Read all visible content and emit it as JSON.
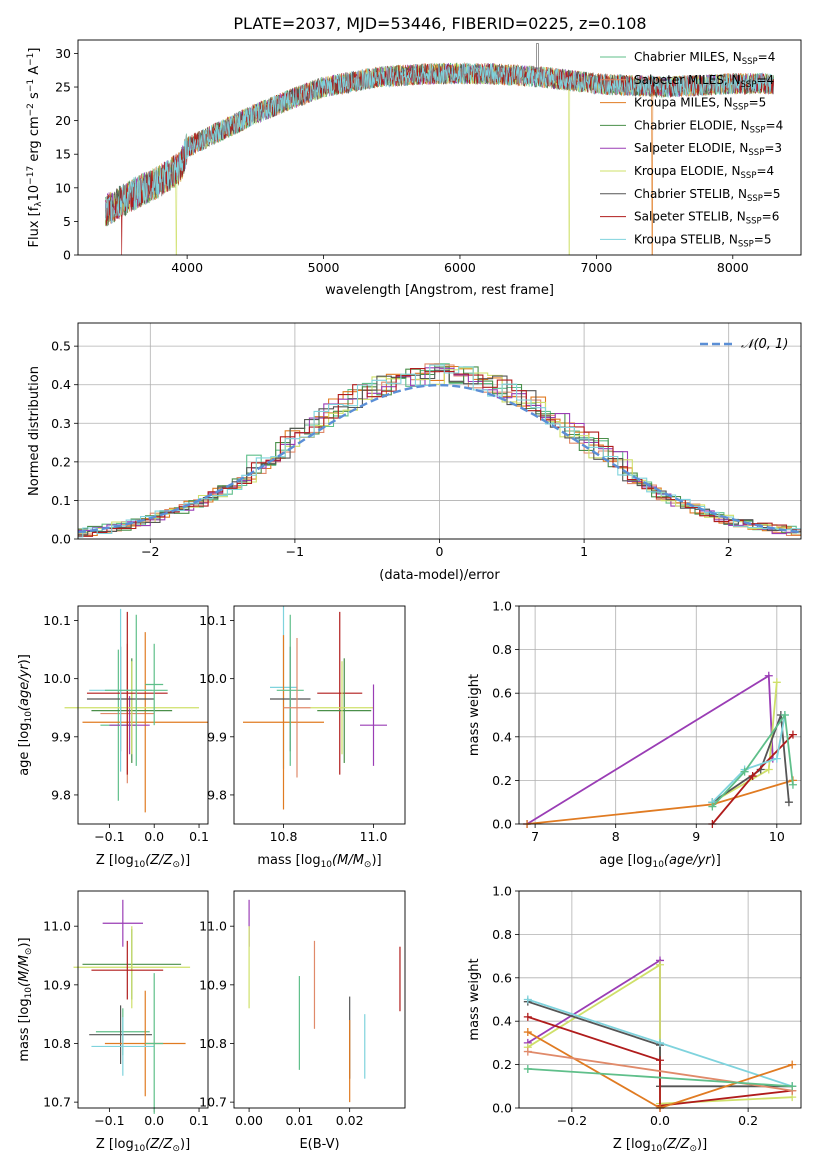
{
  "figure": {
    "title": "PLATE=2037, MJD=53446, FIBERID=0225, z=0.108"
  },
  "models": [
    {
      "name": "Chabrier MILES",
      "nssp": "4",
      "color": "#5fbf8a"
    },
    {
      "name": "Salpeter MILES",
      "nssp": "4",
      "color": "#e08a6a"
    },
    {
      "name": "Kroupa MILES",
      "nssp": "5",
      "color": "#e07b22"
    },
    {
      "name": "Chabrier ELODIE",
      "nssp": "4",
      "color": "#4a8f4a"
    },
    {
      "name": "Salpeter ELODIE",
      "nssp": "3",
      "color": "#9a3db5"
    },
    {
      "name": "Kroupa ELODIE",
      "nssp": "4",
      "color": "#cfe06a"
    },
    {
      "name": "Chabrier STELIB",
      "nssp": "5",
      "color": "#555555"
    },
    {
      "name": "Salpeter STELIB",
      "nssp": "6",
      "color": "#b01c1c"
    },
    {
      "name": "Kroupa STELIB",
      "nssp": "5",
      "color": "#7fd3dd"
    }
  ],
  "chart_data": [
    {
      "id": "spectrum",
      "type": "line",
      "xlabel": "wavelength [Angstrom, rest frame]",
      "ylabel_parts": [
        "Flux [f",
        "λ",
        "10",
        "−17",
        " erg cm",
        "−2",
        " s",
        "−1",
        " A",
        "−1",
        "]"
      ],
      "xlim": [
        3200,
        8500
      ],
      "ylim": [
        0,
        32
      ],
      "xticks": [
        4000,
        5000,
        6000,
        7000,
        8000
      ],
      "yticks": [
        0,
        5,
        10,
        15,
        20,
        25,
        30
      ],
      "continuum": [
        [
          3400,
          6.5
        ],
        [
          3600,
          9
        ],
        [
          3800,
          11
        ],
        [
          3950,
          13
        ],
        [
          4000,
          16
        ],
        [
          4300,
          19
        ],
        [
          4500,
          21
        ],
        [
          4800,
          23.5
        ],
        [
          5000,
          25
        ],
        [
          5400,
          26.5
        ],
        [
          5800,
          27
        ],
        [
          6200,
          27
        ],
        [
          6600,
          26.5
        ],
        [
          7000,
          25.5
        ],
        [
          7500,
          25
        ],
        [
          8000,
          25.5
        ],
        [
          8300,
          25.5
        ]
      ],
      "dropouts": [
        {
          "model": "Salpeter STELIB",
          "x": 3520
        },
        {
          "model": "Kroupa ELODIE",
          "x": 3920
        },
        {
          "model": "Kroupa ELODIE",
          "x": 6800
        },
        {
          "model": "Kroupa MILES",
          "x": 7410
        }
      ]
    },
    {
      "id": "residuals",
      "type": "histogram",
      "xlabel": "(data-model)/error",
      "ylabel": "Normed distribution",
      "xlim": [
        -2.5,
        2.5
      ],
      "ylim": [
        0,
        0.56
      ],
      "xticks": [
        -2,
        -1,
        0,
        1,
        2
      ],
      "xtick_labels": [
        "−2",
        "−1",
        "0",
        "1",
        "2"
      ],
      "yticks": [
        0,
        0.1,
        0.2,
        0.3,
        0.4,
        0.5
      ],
      "ytick_labels": [
        "0.0",
        "0.1",
        "0.2",
        "0.3",
        "0.4",
        "0.5"
      ],
      "grid": true,
      "reference_curve": {
        "label": "𝒩(0, 1)",
        "mean": 0,
        "sigma": 1,
        "color": "#5b8fd6"
      },
      "bin_width": 0.1,
      "legend": "top-right"
    },
    {
      "id": "z-vs-age",
      "type": "scatter",
      "xlabel": "Z [log10(Z/Z⊙)]",
      "ylabel": "age [log10(age/yr)]",
      "xlim": [
        -0.17,
        0.12
      ],
      "ylim": [
        9.75,
        10.125
      ],
      "xticks": [
        -0.1,
        0.0,
        0.1
      ],
      "xtick_labels": [
        "−0.1",
        "0.0",
        "0.1"
      ],
      "yticks": [
        9.8,
        9.9,
        10.0,
        10.1
      ],
      "ytick_labels": [
        "9.8",
        "9.9",
        "10.0",
        "10.1"
      ],
      "points": [
        {
          "model": "Salpeter MILES",
          "x": -0.06,
          "y": 9.94,
          "xerr": 0.06,
          "yerr": 0.12
        },
        {
          "model": "Chabrier MILES",
          "x": -0.08,
          "y": 9.92,
          "xerr": 0.04,
          "yerr": 0.13
        },
        {
          "model": "Kroupa MILES",
          "x": -0.02,
          "y": 9.925,
          "xerr": 0.14,
          "yerr": 0.155
        },
        {
          "model": "Chabrier ELODIE",
          "x": -0.05,
          "y": 9.945,
          "xerr": 0.09,
          "yerr": 0.09
        },
        {
          "model": "Salpeter ELODIE",
          "x": -0.055,
          "y": 9.92,
          "xerr": 0.045,
          "yerr": 0.05
        },
        {
          "model": "Kroupa ELODIE",
          "x": -0.05,
          "y": 9.95,
          "xerr": 0.15,
          "yerr": 0.08
        },
        {
          "model": "Chabrier STELIB",
          "x": -0.075,
          "y": 9.965,
          "xerr": 0.075,
          "yerr": 0.09
        },
        {
          "model": "Salpeter STELIB",
          "x": -0.06,
          "y": 9.975,
          "xerr": 0.09,
          "yerr": 0.14
        },
        {
          "model": "Kroupa STELIB",
          "x": -0.075,
          "y": 9.98,
          "xerr": 0.07,
          "yerr": 0.14
        },
        {
          "model": "Chabrier MILES",
          "x": -0.04,
          "y": 9.98,
          "xerr": 0.07,
          "yerr": 0.13
        },
        {
          "model": "Chabrier MILES",
          "x": 0.0,
          "y": 9.99,
          "xerr": 0.02,
          "yerr": 0.07
        }
      ]
    },
    {
      "id": "mass-vs-age",
      "type": "scatter",
      "xlabel": "mass [log10(M/M⊙)]",
      "ylabel": "",
      "xlim": [
        10.69,
        11.07
      ],
      "ylim": [
        9.75,
        10.125
      ],
      "xticks": [
        10.8,
        11.0
      ],
      "xtick_labels": [
        "10.8",
        "11.0"
      ],
      "yticks": [
        9.8,
        9.9,
        10.0,
        10.1
      ],
      "ytick_labels": [
        "9.8",
        "9.9",
        "10.0",
        "10.1"
      ],
      "points": [
        {
          "model": "Kroupa STELIB",
          "x": 10.8,
          "y": 9.985,
          "xerr": 0.03,
          "yerr": 0.14
        },
        {
          "model": "Kroupa MILES",
          "x": 10.8,
          "y": 9.925,
          "xerr": 0.09,
          "yerr": 0.15
        },
        {
          "model": "Chabrier STELIB",
          "x": 10.815,
          "y": 9.965,
          "xerr": 0.045,
          "yerr": 0.09
        },
        {
          "model": "Chabrier MILES",
          "x": 10.815,
          "y": 9.98,
          "xerr": 0.03,
          "yerr": 0.13
        },
        {
          "model": "Salpeter MILES",
          "x": 10.83,
          "y": 9.95,
          "xerr": 0.03,
          "yerr": 0.12
        },
        {
          "model": "Salpeter STELIB",
          "x": 10.925,
          "y": 9.975,
          "xerr": 0.05,
          "yerr": 0.14
        },
        {
          "model": "Chabrier ELODIE",
          "x": 10.935,
          "y": 9.945,
          "xerr": 0.06,
          "yerr": 0.09
        },
        {
          "model": "Kroupa ELODIE",
          "x": 10.93,
          "y": 9.95,
          "xerr": 0.07,
          "yerr": 0.08
        },
        {
          "model": "Salpeter ELODIE",
          "x": 11.0,
          "y": 9.92,
          "xerr": 0.03,
          "yerr": 0.07
        }
      ]
    },
    {
      "id": "age-vs-weight",
      "type": "line",
      "xlabel": "age [log10(age/yr)]",
      "ylabel": "mass weight",
      "xlim": [
        6.8,
        10.3
      ],
      "ylim": [
        0,
        1.0
      ],
      "xticks": [
        7,
        8,
        9,
        10
      ],
      "yticks": [
        0,
        0.2,
        0.4,
        0.6,
        0.8,
        1.0
      ],
      "ytick_labels": [
        "0.0",
        "0.2",
        "0.4",
        "0.6",
        "0.8",
        "1.0"
      ],
      "grid": true,
      "series": [
        {
          "model": "Salpeter ELODIE",
          "x": [
            6.9,
            9.9,
            9.95
          ],
          "y": [
            0.0,
            0.68,
            0.3
          ]
        },
        {
          "model": "Kroupa MILES",
          "x": [
            6.9,
            9.2,
            10.2
          ],
          "y": [
            0.0,
            0.09,
            0.2
          ]
        },
        {
          "model": "Kroupa ELODIE",
          "x": [
            9.2,
            9.9,
            10.0
          ],
          "y": [
            0.1,
            0.25,
            0.65
          ]
        },
        {
          "model": "Chabrier STELIB",
          "x": [
            9.2,
            9.8,
            10.05,
            10.15
          ],
          "y": [
            0.1,
            0.25,
            0.5,
            0.1
          ]
        },
        {
          "model": "Salpeter STELIB",
          "x": [
            9.2,
            9.7,
            10.2
          ],
          "y": [
            0.0,
            0.22,
            0.41
          ]
        },
        {
          "model": "Kroupa STELIB",
          "x": [
            9.2,
            9.6,
            10.0,
            10.1
          ],
          "y": [
            0.1,
            0.25,
            0.3,
            0.5
          ]
        },
        {
          "model": "Chabrier MILES",
          "x": [
            9.2,
            9.6,
            10.1,
            10.2
          ],
          "y": [
            0.08,
            0.24,
            0.5,
            0.18
          ]
        }
      ]
    },
    {
      "id": "z-vs-mass",
      "type": "scatter",
      "xlabel": "Z [log10(Z/Z⊙)]",
      "ylabel": "mass [log10(M/M⊙)]",
      "xlim": [
        -0.17,
        0.12
      ],
      "ylim": [
        10.69,
        11.06
      ],
      "xticks": [
        -0.1,
        0.0,
        0.1
      ],
      "xtick_labels": [
        "−0.1",
        "0.0",
        "0.1"
      ],
      "yticks": [
        10.7,
        10.8,
        10.9,
        11.0
      ],
      "ytick_labels": [
        "10.7",
        "10.8",
        "10.9",
        "11.0"
      ],
      "points": [
        {
          "model": "Salpeter ELODIE",
          "x": -0.07,
          "y": 11.005,
          "xerr": 0.045,
          "yerr": 0.04
        },
        {
          "model": "Chabrier ELODIE",
          "x": -0.05,
          "y": 10.935,
          "xerr": 0.11,
          "yerr": 0.06
        },
        {
          "model": "Kroupa ELODIE",
          "x": -0.05,
          "y": 10.93,
          "xerr": 0.13,
          "yerr": 0.07
        },
        {
          "model": "Salpeter STELIB",
          "x": -0.06,
          "y": 10.925,
          "xerr": 0.08,
          "yerr": 0.05
        },
        {
          "model": "Chabrier MILES",
          "x": -0.07,
          "y": 10.82,
          "xerr": 0.06,
          "yerr": 0.04
        },
        {
          "model": "Chabrier STELIB",
          "x": -0.075,
          "y": 10.815,
          "xerr": 0.07,
          "yerr": 0.05
        },
        {
          "model": "Kroupa MILES",
          "x": -0.02,
          "y": 10.8,
          "xerr": 0.09,
          "yerr": 0.09
        },
        {
          "model": "Kroupa STELIB",
          "x": -0.07,
          "y": 10.795,
          "xerr": 0.07,
          "yerr": 0.05
        },
        {
          "model": "Chabrier MILES",
          "x": 0.0,
          "y": 10.8,
          "xerr": 0.02,
          "yerr": 0.12
        }
      ]
    },
    {
      "id": "ebv-vs-mass",
      "type": "scatter",
      "xlabel": "E(B-V)",
      "ylabel": "",
      "xlim": [
        -0.003,
        0.031
      ],
      "ylim": [
        10.69,
        11.06
      ],
      "xticks": [
        0.0,
        0.01,
        0.02
      ],
      "xtick_labels": [
        "0.00",
        "0.01",
        "0.02"
      ],
      "yticks": [
        10.7,
        10.8,
        10.9,
        11.0
      ],
      "ytick_labels": [
        "10.7",
        "10.8",
        "10.9",
        "11.0"
      ],
      "points": [
        {
          "model": "Salpeter ELODIE",
          "x": 0.0,
          "y": 11.005,
          "xerr": 0,
          "yerr": 0.04
        },
        {
          "model": "Kroupa ELODIE",
          "x": 0.0,
          "y": 10.93,
          "xerr": 0,
          "yerr": 0.07
        },
        {
          "model": "Chabrier MILES",
          "x": 0.01,
          "y": 10.835,
          "xerr": 0,
          "yerr": 0.08
        },
        {
          "model": "Salpeter MILES",
          "x": 0.013,
          "y": 10.9,
          "xerr": 0,
          "yerr": 0.075
        },
        {
          "model": "Chabrier STELIB",
          "x": 0.02,
          "y": 10.81,
          "xerr": 0,
          "yerr": 0.07
        },
        {
          "model": "Kroupa MILES",
          "x": 0.02,
          "y": 10.77,
          "xerr": 0,
          "yerr": 0.07
        },
        {
          "model": "Kroupa STELIB",
          "x": 0.023,
          "y": 10.795,
          "xerr": 0,
          "yerr": 0.055
        },
        {
          "model": "Salpeter STELIB",
          "x": 0.03,
          "y": 10.91,
          "xerr": 0,
          "yerr": 0.055
        }
      ]
    },
    {
      "id": "z-vs-weight",
      "type": "line",
      "xlabel": "Z [log10(Z/Z⊙)]",
      "ylabel": "mass weight",
      "xlim": [
        -0.32,
        0.32
      ],
      "ylim": [
        0,
        1.0
      ],
      "xticks": [
        -0.2,
        0.0,
        0.2
      ],
      "xtick_labels": [
        "−0.2",
        "0.0",
        "0.2"
      ],
      "yticks": [
        0,
        0.2,
        0.4,
        0.6,
        0.8,
        1.0
      ],
      "ytick_labels": [
        "0.0",
        "0.2",
        "0.4",
        "0.6",
        "0.8",
        "1.0"
      ],
      "grid": true,
      "series": [
        {
          "model": "Salpeter ELODIE",
          "x": [
            -0.3,
            0.0,
            0.0
          ],
          "y": [
            0.3,
            0.68,
            0.0
          ]
        },
        {
          "model": "Kroupa ELODIE",
          "x": [
            -0.3,
            0.0,
            0.0,
            0.3
          ],
          "y": [
            0.28,
            0.66,
            0.02,
            0.05
          ]
        },
        {
          "model": "Chabrier STELIB",
          "x": [
            -0.3,
            0.0,
            0.0,
            0.3
          ],
          "y": [
            0.49,
            0.29,
            0.1,
            0.1
          ]
        },
        {
          "model": "Salpeter STELIB",
          "x": [
            -0.3,
            0.0,
            0.0,
            0.3
          ],
          "y": [
            0.42,
            0.22,
            0.01,
            0.08
          ]
        },
        {
          "model": "Kroupa STELIB",
          "x": [
            -0.3,
            0.0,
            0.3
          ],
          "y": [
            0.5,
            0.3,
            0.1
          ]
        },
        {
          "model": "Kroupa MILES",
          "x": [
            -0.3,
            0.0,
            0.3
          ],
          "y": [
            0.35,
            0.0,
            0.2
          ]
        },
        {
          "model": "Salpeter MILES",
          "x": [
            -0.3,
            0.3
          ],
          "y": [
            0.26,
            0.08
          ]
        },
        {
          "model": "Chabrier MILES",
          "x": [
            -0.3,
            0.3
          ],
          "y": [
            0.18,
            0.1
          ]
        }
      ]
    }
  ]
}
